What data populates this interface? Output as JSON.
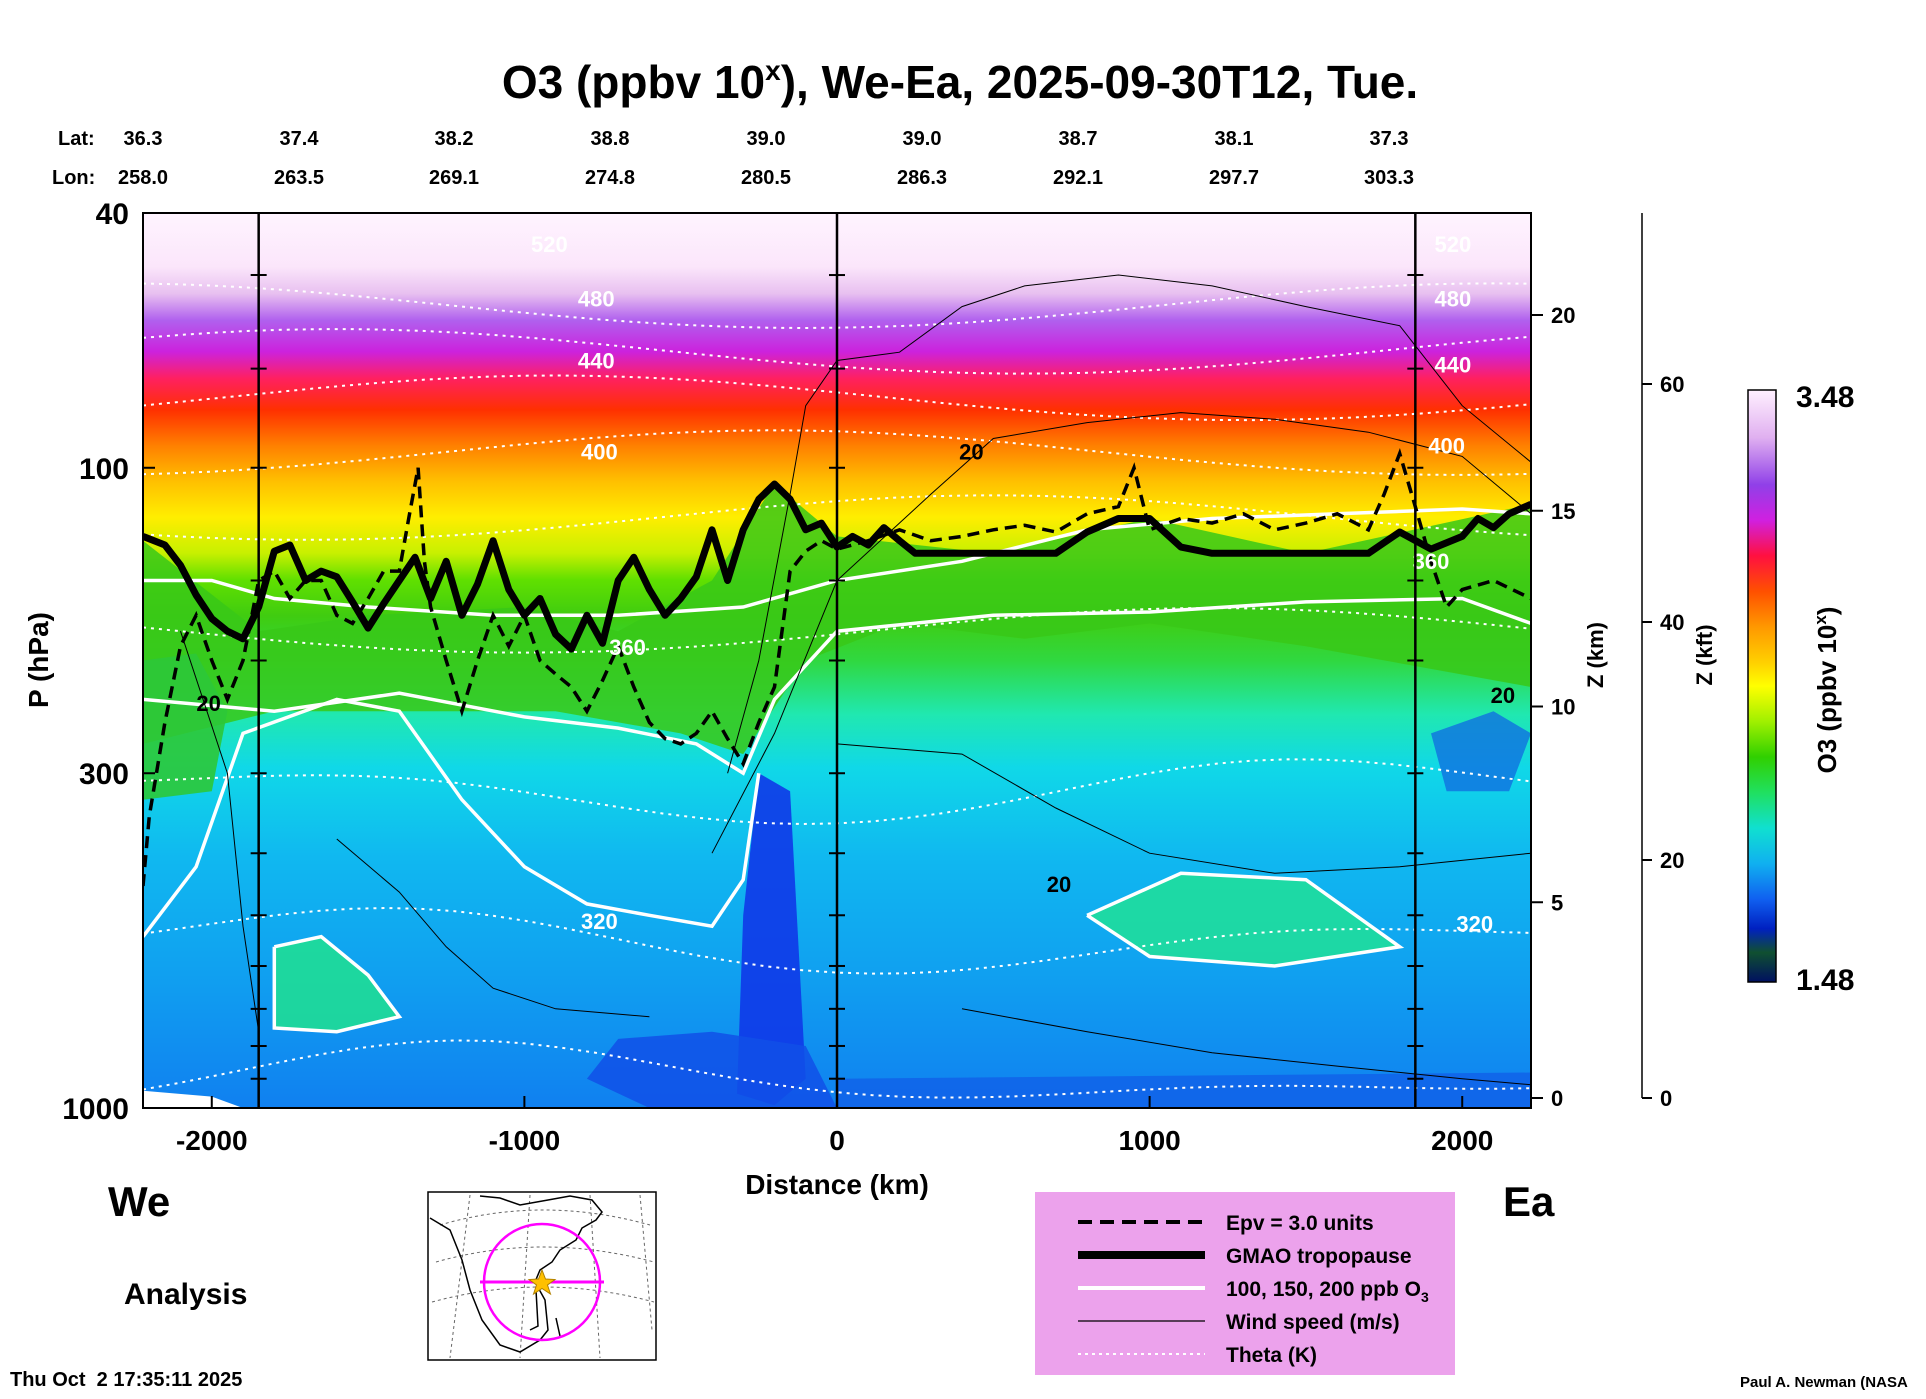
{
  "title": {
    "main": "O3 (ppbv 10",
    "sup": "x",
    "rest": "), We-Ea, 2025-09-30T12, Tue."
  },
  "lat_label": "Lat:",
  "lon_label": "Lon:",
  "lat_values": [
    "36.3",
    "37.4",
    "38.2",
    "38.8",
    "39.0",
    "39.0",
    "38.7",
    "38.1",
    "37.3"
  ],
  "lon_values": [
    "258.0",
    "263.5",
    "269.1",
    "274.8",
    "280.5",
    "286.3",
    "292.1",
    "297.7",
    "303.3"
  ],
  "left_label": "We",
  "right_label": "Ea",
  "analysis_label": "Analysis",
  "timestamp": "Thu Oct  2 17:35:11 2025",
  "credit": "Paul A. Newman (NASA",
  "chart_data": {
    "type": "heatmap",
    "xlabel": "Distance (km)",
    "ylabel": "P (hPa)",
    "xlim": [
      -2220,
      2220
    ],
    "ylim": [
      1000,
      40
    ],
    "y_scale": "log",
    "x_ticks": [
      "-2000",
      "-1000",
      "0",
      "1000",
      "2000"
    ],
    "x_tick_values": [
      -2000,
      -1000,
      0,
      1000,
      2000
    ],
    "y_ticks": [
      "40",
      "100",
      "300",
      "1000"
    ],
    "y_tick_values": [
      40,
      100,
      300,
      1000
    ],
    "z_km_label": "Z (km)",
    "z_km_ticks": [
      "0",
      "5",
      "10",
      "15",
      "20"
    ],
    "z_km_values": [
      0,
      5,
      10,
      15,
      20
    ],
    "z_kft_label": "Z (kft)",
    "z_kft_ticks": [
      "0",
      "20",
      "40",
      "60"
    ],
    "z_kft_values": [
      0,
      20,
      40,
      60
    ],
    "colorbar": {
      "label": "O3 (ppbv 10",
      "label_sup": "x",
      "label_rest": ")",
      "max": "3.48",
      "min": "1.48",
      "max_value": 3.48,
      "min_value": 1.48
    },
    "theta_labels": [
      "520",
      "480",
      "440",
      "400",
      "360",
      "320",
      "520",
      "480",
      "440",
      "400",
      "360",
      "320"
    ],
    "wind_labels": [
      "20",
      "20",
      "20",
      "20"
    ],
    "tropopause_profile": {
      "x": [
        -2220,
        -2150,
        -2100,
        -2050,
        -2000,
        -1950,
        -1900,
        -1850,
        -1800,
        -1750,
        -1700,
        -1650,
        -1600,
        -1550,
        -1500,
        -1450,
        -1400,
        -1350,
        -1300,
        -1250,
        -1200,
        -1150,
        -1100,
        -1050,
        -1000,
        -950,
        -900,
        -850,
        -800,
        -750,
        -700,
        -650,
        -600,
        -550,
        -500,
        -450,
        -400,
        -350,
        -300,
        -250,
        -200,
        -150,
        -100,
        -50,
        0,
        50,
        100,
        150,
        200,
        250,
        300,
        400,
        500,
        600,
        700,
        800,
        900,
        1000,
        1100,
        1200,
        1300,
        1400,
        1500,
        1600,
        1700,
        1800,
        1900,
        2000,
        2050,
        2100,
        2150,
        2220
      ],
      "p": [
        128,
        132,
        142,
        158,
        172,
        180,
        185,
        165,
        135,
        132,
        150,
        145,
        148,
        162,
        178,
        163,
        150,
        138,
        160,
        140,
        170,
        152,
        130,
        155,
        170,
        160,
        182,
        192,
        170,
        188,
        150,
        138,
        155,
        170,
        160,
        148,
        125,
        150,
        125,
        112,
        106,
        112,
        125,
        122,
        133,
        128,
        132,
        124,
        130,
        136,
        136,
        136,
        136,
        136,
        136,
        126,
        120,
        120,
        133,
        136,
        136,
        136,
        136,
        136,
        136,
        126,
        134,
        128,
        120,
        124,
        118,
        114
      ]
    },
    "epv_profile": {
      "x": [
        -2220,
        -2200,
        -2150,
        -2100,
        -2050,
        -2000,
        -1950,
        -1900,
        -1850,
        -1800,
        -1750,
        -1700,
        -1650,
        -1600,
        -1550,
        -1500,
        -1450,
        -1400,
        -1370,
        -1340,
        -1320,
        -1300,
        -1250,
        -1200,
        -1150,
        -1100,
        -1050,
        -1000,
        -950,
        -900,
        -850,
        -800,
        -750,
        -700,
        -650,
        -600,
        -550,
        -500,
        -450,
        -400,
        -350,
        -300,
        -250,
        -200,
        -150,
        -100,
        -50,
        0,
        100,
        200,
        300,
        400,
        500,
        600,
        700,
        800,
        900,
        950,
        1000,
        1100,
        1200,
        1300,
        1400,
        1500,
        1600,
        1700,
        1750,
        1800,
        1850,
        1900,
        1950,
        2000,
        2100,
        2220
      ],
      "p": [
        450,
        350,
        250,
        190,
        170,
        200,
        230,
        200,
        150,
        145,
        160,
        150,
        150,
        170,
        175,
        160,
        145,
        145,
        120,
        100,
        140,
        165,
        200,
        240,
        200,
        170,
        190,
        170,
        200,
        210,
        220,
        240,
        215,
        190,
        220,
        250,
        265,
        270,
        260,
        240,
        265,
        290,
        250,
        220,
        145,
        135,
        130,
        134,
        130,
        125,
        130,
        128,
        125,
        123,
        126,
        118,
        115,
        100,
        125,
        120,
        122,
        118,
        125,
        122,
        118,
        125,
        110,
        95,
        115,
        140,
        165,
        155,
        150,
        160
      ]
    },
    "legend": [
      {
        "style": "dashed",
        "label": "Epv = 3.0 units"
      },
      {
        "style": "thick",
        "label": "GMAO tropopause"
      },
      {
        "style": "white",
        "label": "100, 150, 200 ppb O"
      },
      {
        "style": "thin",
        "label": "Wind speed (m/s)"
      },
      {
        "style": "dotted",
        "label": "Theta (K)"
      }
    ],
    "legend_o3_sub": "3",
    "legend_position": "bottom-right"
  },
  "colors": {
    "legend_bg": "#eca2ec",
    "minimap_circle": "#ff00ff",
    "star": "#ffc000"
  }
}
